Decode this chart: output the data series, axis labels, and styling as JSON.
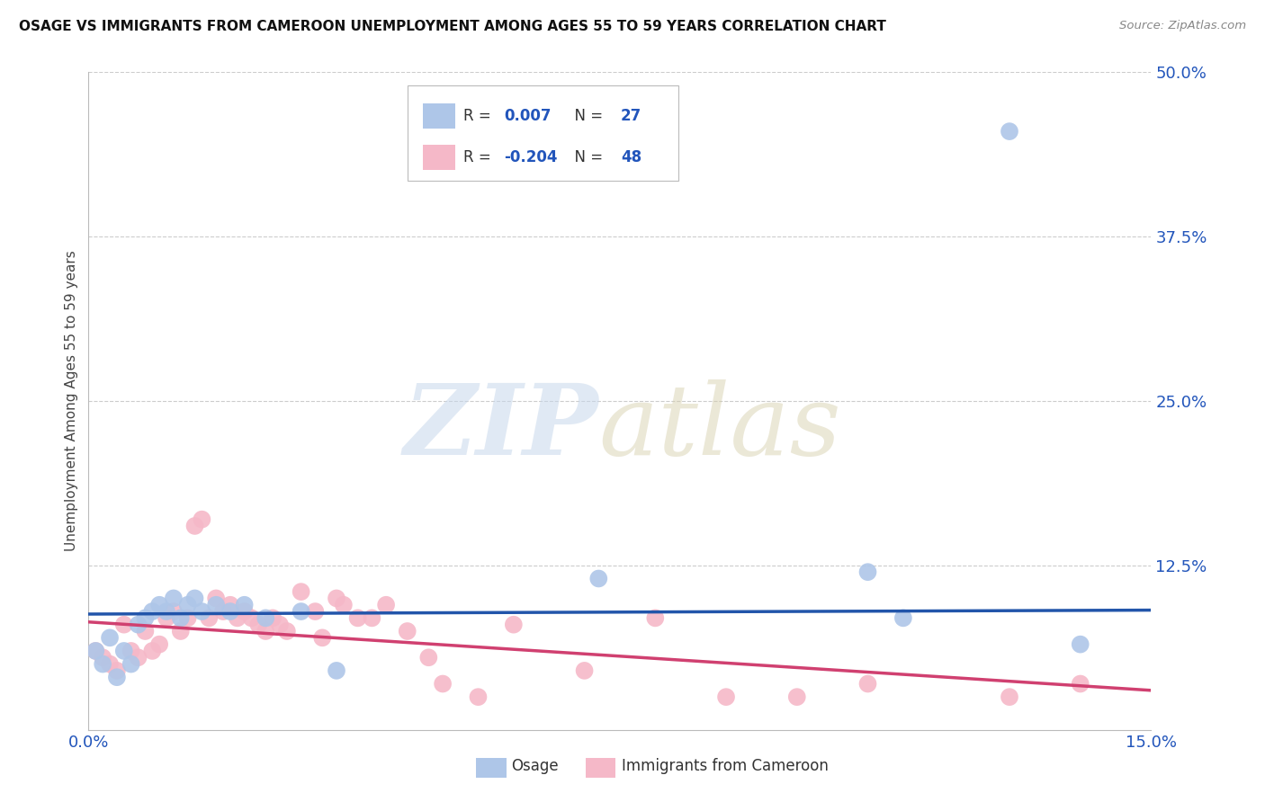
{
  "title": "OSAGE VS IMMIGRANTS FROM CAMEROON UNEMPLOYMENT AMONG AGES 55 TO 59 YEARS CORRELATION CHART",
  "source": "Source: ZipAtlas.com",
  "ylabel": "Unemployment Among Ages 55 to 59 years",
  "xlim": [
    0.0,
    0.15
  ],
  "ylim": [
    0.0,
    0.5
  ],
  "xticks": [
    0.0,
    0.025,
    0.05,
    0.075,
    0.1,
    0.125,
    0.15
  ],
  "xticklabels": [
    "0.0%",
    "",
    "",
    "",
    "",
    "",
    "15.0%"
  ],
  "yticks": [
    0.0,
    0.125,
    0.25,
    0.375,
    0.5
  ],
  "yticklabels": [
    "",
    "12.5%",
    "25.0%",
    "37.5%",
    "50.0%"
  ],
  "osage_R": 0.007,
  "osage_N": 27,
  "cameroon_R": -0.204,
  "cameroon_N": 48,
  "osage_color": "#aec6e8",
  "cameroon_color": "#f5b8c8",
  "osage_line_color": "#2255aa",
  "cameroon_line_color": "#d04070",
  "osage_x": [
    0.001,
    0.002,
    0.003,
    0.004,
    0.005,
    0.006,
    0.007,
    0.008,
    0.009,
    0.01,
    0.011,
    0.012,
    0.013,
    0.014,
    0.015,
    0.016,
    0.018,
    0.02,
    0.022,
    0.025,
    0.03,
    0.035,
    0.072,
    0.11,
    0.115,
    0.13,
    0.14
  ],
  "osage_y": [
    0.06,
    0.05,
    0.07,
    0.04,
    0.06,
    0.05,
    0.08,
    0.085,
    0.09,
    0.095,
    0.09,
    0.1,
    0.085,
    0.095,
    0.1,
    0.09,
    0.095,
    0.09,
    0.095,
    0.085,
    0.09,
    0.045,
    0.115,
    0.12,
    0.085,
    0.455,
    0.065
  ],
  "cameroon_x": [
    0.001,
    0.002,
    0.003,
    0.004,
    0.005,
    0.006,
    0.007,
    0.008,
    0.009,
    0.01,
    0.011,
    0.012,
    0.013,
    0.014,
    0.015,
    0.016,
    0.017,
    0.018,
    0.019,
    0.02,
    0.021,
    0.022,
    0.023,
    0.024,
    0.025,
    0.026,
    0.027,
    0.028,
    0.03,
    0.032,
    0.033,
    0.035,
    0.036,
    0.038,
    0.04,
    0.042,
    0.045,
    0.048,
    0.05,
    0.055,
    0.06,
    0.07,
    0.08,
    0.09,
    0.1,
    0.11,
    0.13,
    0.14
  ],
  "cameroon_y": [
    0.06,
    0.055,
    0.05,
    0.045,
    0.08,
    0.06,
    0.055,
    0.075,
    0.06,
    0.065,
    0.085,
    0.09,
    0.075,
    0.085,
    0.155,
    0.16,
    0.085,
    0.1,
    0.09,
    0.095,
    0.085,
    0.09,
    0.085,
    0.08,
    0.075,
    0.085,
    0.08,
    0.075,
    0.105,
    0.09,
    0.07,
    0.1,
    0.095,
    0.085,
    0.085,
    0.095,
    0.075,
    0.055,
    0.035,
    0.025,
    0.08,
    0.045,
    0.085,
    0.025,
    0.025,
    0.035,
    0.025,
    0.035
  ],
  "osage_line_x0": 0.0,
  "osage_line_x1": 0.15,
  "osage_line_y0": 0.088,
  "osage_line_y1": 0.091,
  "cam_line_x0": 0.0,
  "cam_line_x1": 0.15,
  "cam_line_y0": 0.082,
  "cam_line_y1": 0.03
}
